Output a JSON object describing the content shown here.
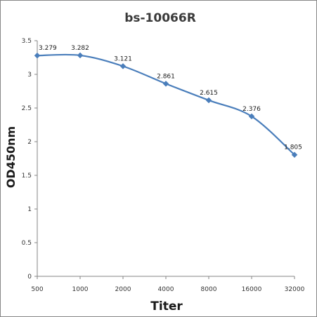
{
  "chart_data": {
    "type": "line",
    "title": "bs-10066R",
    "xlabel": "Titer",
    "ylabel": "OD450nm",
    "categories": [
      "500",
      "1000",
      "2000",
      "4000",
      "8000",
      "16000",
      "32000"
    ],
    "series": [
      {
        "values": [
          3.279,
          3.282,
          3.121,
          2.861,
          2.615,
          2.376,
          1.805
        ],
        "labels": [
          "3.279",
          "3.282",
          "3.121",
          "2.861",
          "2.615",
          "2.376",
          "1.805"
        ],
        "color": "#4a7ebb",
        "marker": "diamond"
      }
    ],
    "ylim": [
      0,
      3.5
    ],
    "yticks": [
      "0",
      "0.5",
      "1",
      "1.5",
      "2",
      "2.5",
      "3",
      "3.5"
    ],
    "grid": false,
    "legend": "none"
  }
}
